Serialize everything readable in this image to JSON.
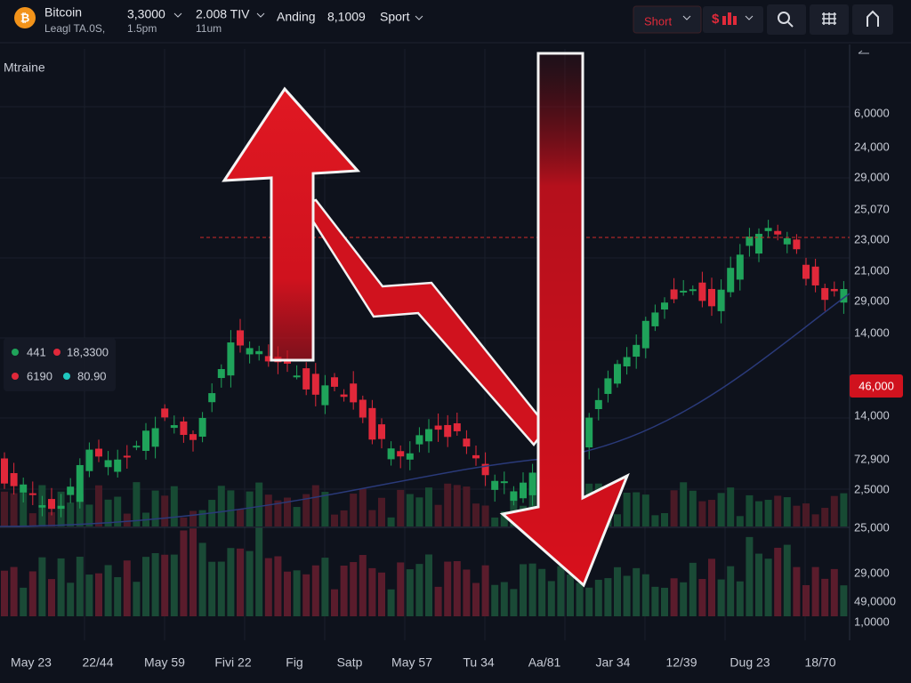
{
  "header": {
    "asset": "Bitcoin",
    "asset_sub": "Leagl TA.0S,",
    "stats": [
      {
        "value": "3,3000",
        "sub": "1.5pm"
      },
      {
        "value": "2.008 TIV",
        "sub": "11um"
      },
      {
        "value": "Anding"
      },
      {
        "value": "8,1009"
      }
    ],
    "menu": "Sport",
    "short_button": "Short"
  },
  "chart": {
    "title": "Mtraine",
    "legend": [
      [
        "441",
        "18,3300"
      ],
      [
        "6190",
        "80.90"
      ]
    ],
    "y_labels": [
      "6,0000",
      "24,000",
      "29,000",
      "25,070",
      "23,000",
      "21,000",
      "29,000",
      "14,000",
      "14,000",
      "72,900",
      "2,5000",
      "25,000",
      "29,000",
      "49,0000",
      "1,0000"
    ],
    "price_tag": "46,000",
    "x_labels": [
      "May 23",
      "22/44",
      "May 59",
      "Fivi 22",
      "Fig",
      "Satp",
      "May 57",
      "Tu 34",
      "Aa/81",
      "Jar 34",
      "12/39",
      "Dug 23",
      "18/70"
    ]
  }
}
